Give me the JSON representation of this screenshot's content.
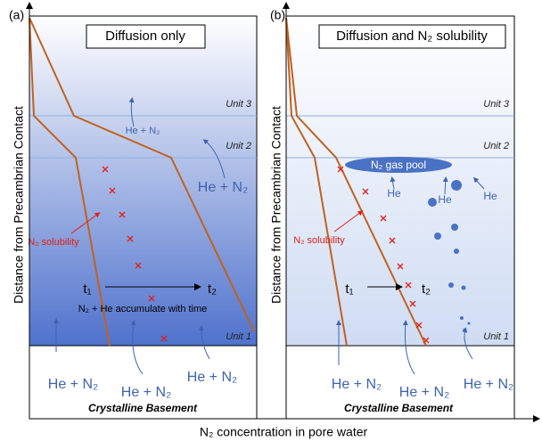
{
  "panels": [
    {
      "label": "(a)",
      "title": "Diffusion only",
      "units": [
        "Unit 3",
        "Unit 2",
        "Unit 1"
      ],
      "flux_top": "He + N₂",
      "flux_unit2": "He + N₂",
      "solubility": "N₂ solubility",
      "t1": "t₁",
      "t2": "t₂",
      "note": "N₂ + He accumulate with time",
      "basement_flux": [
        "He + N₂",
        "He + N₂",
        "He + N₂"
      ],
      "basement": "Crystalline Basement"
    },
    {
      "label": "(b)",
      "title": "Diffusion and N₂ solubility",
      "units": [
        "Unit 3",
        "Unit 2",
        "Unit 1"
      ],
      "gas_pool": "N₂ gas pool",
      "bubbles": [
        "He",
        "He",
        "He"
      ],
      "solubility": "N₂ solubility",
      "t1": "t₁",
      "t2": "t₂",
      "basement_flux": [
        "He + N₂",
        "He + N₂",
        "He + N₂"
      ],
      "basement": "Crystalline Basement"
    }
  ],
  "y_axis_label": "Distance from Precambrian Contact",
  "x_axis_label": "N₂ concentration in pore water"
}
